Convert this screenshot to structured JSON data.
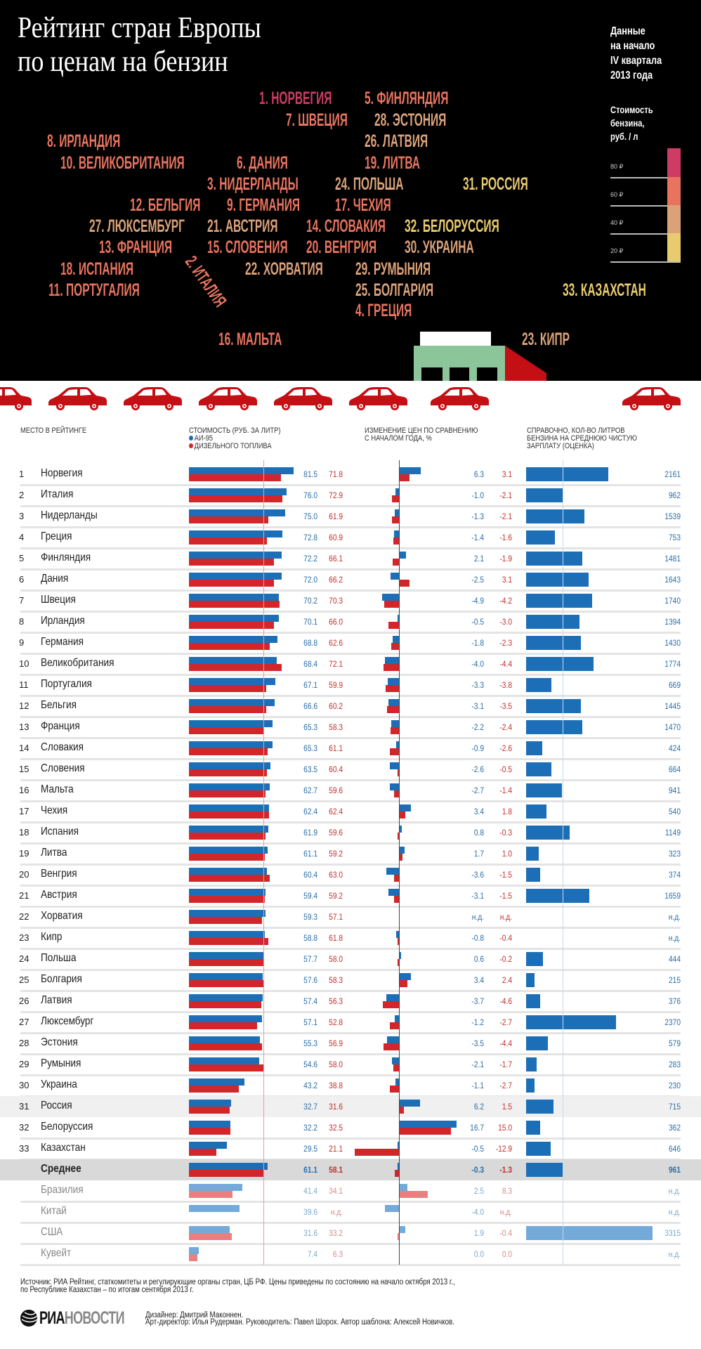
{
  "header": {
    "title_line1": "Рейтинг стран Европы",
    "title_line2": "по ценам на бензин",
    "data_note": [
      "Данные",
      "на начало",
      "IV квартала",
      "2013 года"
    ],
    "legend_title": [
      "Стоимость",
      "бензина,",
      "руб. / л"
    ],
    "legend": [
      {
        "label": "80 ₽",
        "color": "#cc3c64"
      },
      {
        "label": "60 ₽",
        "color": "#e8745f"
      },
      {
        "label": "40 ₽",
        "color": "#dba27a"
      },
      {
        "label": "20 ₽",
        "color": "#e9cb6f"
      }
    ]
  },
  "map_labels": [
    {
      "text": "1. НОРВЕГИЯ",
      "color": "#cc3c64"
    },
    {
      "text": "5. ФИНЛЯНДИЯ",
      "color": "#e8745f"
    },
    {
      "text": "7. ШВЕЦИЯ",
      "color": "#e8745f"
    },
    {
      "text": "28. ЭСТОНИЯ",
      "color": "#dba27a"
    },
    {
      "text": "8. ИРЛАНДИЯ",
      "color": "#e8745f"
    },
    {
      "text": "26. ЛАТВИЯ",
      "color": "#dba27a"
    },
    {
      "text": "10. ВЕЛИКОБРИТАНИЯ",
      "color": "#e8745f"
    },
    {
      "text": "6. ДАНИЯ",
      "color": "#e8745f"
    },
    {
      "text": "19. ЛИТВА",
      "color": "#e8745f"
    },
    {
      "text": "3. НИДЕРЛАНДЫ",
      "color": "#e8745f"
    },
    {
      "text": "24. ПОЛЬША",
      "color": "#dba27a"
    },
    {
      "text": "31. РОССИЯ",
      "color": "#e9cb6f"
    },
    {
      "text": "12. БЕЛЬГИЯ",
      "color": "#e8745f"
    },
    {
      "text": "9. ГЕРМАНИЯ",
      "color": "#e8745f"
    },
    {
      "text": "17. ЧЕХИЯ",
      "color": "#e8745f"
    },
    {
      "text": "27. ЛЮКСЕМБУРГ",
      "color": "#dba27a"
    },
    {
      "text": "21. АВСТРИЯ",
      "color": "#dba27a"
    },
    {
      "text": "14. СЛОВАКИЯ",
      "color": "#e8745f"
    },
    {
      "text": "32. БЕЛОРУССИЯ",
      "color": "#e9cb6f"
    },
    {
      "text": "13. ФРАНЦИЯ",
      "color": "#e8745f"
    },
    {
      "text": "15. СЛОВЕНИЯ",
      "color": "#e8745f"
    },
    {
      "text": "20. ВЕНГРИЯ",
      "color": "#e8745f"
    },
    {
      "text": "30. УКРАИНА",
      "color": "#dba27a"
    },
    {
      "text": "18. ИСПАНИЯ",
      "color": "#e8745f"
    },
    {
      "text": "22. ХОРВАТИЯ",
      "color": "#dba27a"
    },
    {
      "text": "29. РУМЫНИЯ",
      "color": "#dba27a"
    },
    {
      "text": "11. ПОРТУГАЛИЯ",
      "color": "#e8745f"
    },
    {
      "text": "25. БОЛГАРИЯ",
      "color": "#dba27a"
    },
    {
      "text": "4. ГРЕЦИЯ",
      "color": "#e8745f"
    },
    {
      "text": "33. КАЗАХСТАН",
      "color": "#e9cb6f"
    },
    {
      "text": "2. ИТАЛИЯ",
      "color": "#e8745f"
    },
    {
      "text": "16. МАЛЬТА",
      "color": "#e8745f"
    },
    {
      "text": "23. КИПР",
      "color": "#dba27a"
    }
  ],
  "table_header": {
    "rank": "Место в рейтинге",
    "cost": "Стоимость (руб. за литр)",
    "ai95": "АИ-95",
    "diesel": "дизельного топлива",
    "change": [
      "Изменение цен по сравнению",
      "с началом года, %"
    ],
    "liters": [
      "Справочно, кол-во литров",
      "бензина на среднюю чистую",
      "зарплату (оценка)"
    ]
  },
  "colors": {
    "ai95": "#1c6fb6",
    "diesel": "#d2262a",
    "ai95_light": "#74aad9",
    "diesel_light": "#e98080",
    "ai95_text": "#2a6ea8",
    "diesel_text": "#c0302c"
  },
  "chart_data": {
    "type": "bar",
    "grid": false,
    "columns": [
      "Стоимость АИ-95",
      "Стоимость дизельного топлива",
      "Изменение АИ-95, %",
      "Изменение дизеля, %",
      "Литров на зарплату"
    ],
    "rows": [
      {
        "rank": "1",
        "name": "Норвегия",
        "ai95": "81.5",
        "diesel": "71.8",
        "ai95_change": "6.3",
        "diesel_change": "3.1",
        "liters": "2161"
      },
      {
        "rank": "2",
        "name": "Италия",
        "ai95": "76.0",
        "diesel": "72.9",
        "ai95_change": "-1.0",
        "diesel_change": "-2.1",
        "liters": "962"
      },
      {
        "rank": "3",
        "name": "Нидерланды",
        "ai95": "75.0",
        "diesel": "61.9",
        "ai95_change": "-1.3",
        "diesel_change": "-2.1",
        "liters": "1539"
      },
      {
        "rank": "4",
        "name": "Греция",
        "ai95": "72.8",
        "diesel": "60.9",
        "ai95_change": "-1.4",
        "diesel_change": "-1.6",
        "liters": "753"
      },
      {
        "rank": "5",
        "name": "Финляндия",
        "ai95": "72.2",
        "diesel": "66.1",
        "ai95_change": "2.1",
        "diesel_change": "-1.9",
        "liters": "1481"
      },
      {
        "rank": "6",
        "name": "Дания",
        "ai95": "72.0",
        "diesel": "66.2",
        "ai95_change": "-2.5",
        "diesel_change": "3.1",
        "liters": "1643"
      },
      {
        "rank": "7",
        "name": "Швеция",
        "ai95": "70.2",
        "diesel": "70.3",
        "ai95_change": "-4.9",
        "diesel_change": "-4.2",
        "liters": "1740"
      },
      {
        "rank": "8",
        "name": "Ирландия",
        "ai95": "70.1",
        "diesel": "66.0",
        "ai95_change": "-0.5",
        "diesel_change": "-3.0",
        "liters": "1394"
      },
      {
        "rank": "9",
        "name": "Германия",
        "ai95": "68.8",
        "diesel": "62.6",
        "ai95_change": "-1.8",
        "diesel_change": "-2.3",
        "liters": "1430"
      },
      {
        "rank": "10",
        "name": "Великобритания",
        "ai95": "68.4",
        "diesel": "72.1",
        "ai95_change": "-4.0",
        "diesel_change": "-4.4",
        "liters": "1774"
      },
      {
        "rank": "11",
        "name": "Португалия",
        "ai95": "67.1",
        "diesel": "59.9",
        "ai95_change": "-3.3",
        "diesel_change": "-3.8",
        "liters": "669"
      },
      {
        "rank": "12",
        "name": "Бельгия",
        "ai95": "66.6",
        "diesel": "60.2",
        "ai95_change": "-3.1",
        "diesel_change": "-3.5",
        "liters": "1445"
      },
      {
        "rank": "13",
        "name": "Франция",
        "ai95": "65.3",
        "diesel": "58.3",
        "ai95_change": "-2.2",
        "diesel_change": "-2.4",
        "liters": "1470"
      },
      {
        "rank": "14",
        "name": "Словакия",
        "ai95": "65.3",
        "diesel": "61.1",
        "ai95_change": "-0.9",
        "diesel_change": "-2.6",
        "liters": "424"
      },
      {
        "rank": "15",
        "name": "Словения",
        "ai95": "63.5",
        "diesel": "60.4",
        "ai95_change": "-2.6",
        "diesel_change": "-0.5",
        "liters": "664"
      },
      {
        "rank": "16",
        "name": "Мальта",
        "ai95": "62.7",
        "diesel": "59.6",
        "ai95_change": "-2.7",
        "diesel_change": "-1.4",
        "liters": "941"
      },
      {
        "rank": "17",
        "name": "Чехия",
        "ai95": "62.4",
        "diesel": "62.4",
        "ai95_change": "3.4",
        "diesel_change": "1.8",
        "liters": "540"
      },
      {
        "rank": "18",
        "name": "Испания",
        "ai95": "61.9",
        "diesel": "59.6",
        "ai95_change": "0.8",
        "diesel_change": "-0.3",
        "liters": "1149"
      },
      {
        "rank": "19",
        "name": "Литва",
        "ai95": "61.1",
        "diesel": "59.2",
        "ai95_change": "1.7",
        "diesel_change": "1.0",
        "liters": "323"
      },
      {
        "rank": "20",
        "name": "Венгрия",
        "ai95": "60.4",
        "diesel": "63.0",
        "ai95_change": "-3.6",
        "diesel_change": "-1.5",
        "liters": "374"
      },
      {
        "rank": "21",
        "name": "Австрия",
        "ai95": "59.4",
        "diesel": "59.2",
        "ai95_change": "-3.1",
        "diesel_change": "-1.5",
        "liters": "1659"
      },
      {
        "rank": "22",
        "name": "Хорватия",
        "ai95": "59.3",
        "diesel": "57.1",
        "ai95_change": "н.д.",
        "diesel_change": "н.д.",
        "liters": "н.д."
      },
      {
        "rank": "23",
        "name": "Кипр",
        "ai95": "58.8",
        "diesel": "61.8",
        "ai95_change": "-0.8",
        "diesel_change": "-0.4",
        "liters": "н.д."
      },
      {
        "rank": "24",
        "name": "Польша",
        "ai95": "57.7",
        "diesel": "58.0",
        "ai95_change": "0.6",
        "diesel_change": "-0.2",
        "liters": "444"
      },
      {
        "rank": "25",
        "name": "Болгария",
        "ai95": "57.6",
        "diesel": "58.3",
        "ai95_change": "3.4",
        "diesel_change": "2.4",
        "liters": "215"
      },
      {
        "rank": "26",
        "name": "Латвия",
        "ai95": "57.4",
        "diesel": "56.3",
        "ai95_change": "-3.7",
        "diesel_change": "-4.6",
        "liters": "376"
      },
      {
        "rank": "27",
        "name": "Люксембург",
        "ai95": "57.1",
        "diesel": "52.8",
        "ai95_change": "-1.2",
        "diesel_change": "-2.7",
        "liters": "2370"
      },
      {
        "rank": "28",
        "name": "Эстония",
        "ai95": "55.3",
        "diesel": "56.9",
        "ai95_change": "-3.5",
        "diesel_change": "-4.4",
        "liters": "579"
      },
      {
        "rank": "29",
        "name": "Румыния",
        "ai95": "54.6",
        "diesel": "58.0",
        "ai95_change": "-2.1",
        "diesel_change": "-1.7",
        "liters": "283"
      },
      {
        "rank": "30",
        "name": "Украина",
        "ai95": "43.2",
        "diesel": "38.8",
        "ai95_change": "-1.1",
        "diesel_change": "-2.7",
        "liters": "230"
      },
      {
        "rank": "31",
        "name": "Россия",
        "ai95": "32.7",
        "diesel": "31.6",
        "ai95_change": "6.2",
        "diesel_change": "1.5",
        "liters": "715",
        "highlight": true
      },
      {
        "rank": "32",
        "name": "Белоруссия",
        "ai95": "32.2",
        "diesel": "32.5",
        "ai95_change": "16.7",
        "diesel_change": "15.0",
        "liters": "362"
      },
      {
        "rank": "33",
        "name": "Казахстан",
        "ai95": "29.5",
        "diesel": "21.1",
        "ai95_change": "-0.5",
        "diesel_change": "-12.9",
        "liters": "646"
      },
      {
        "rank": "",
        "name": "Среднее",
        "ai95": "61.1",
        "diesel": "58.1",
        "ai95_change": "-0.3",
        "diesel_change": "-1.3",
        "liters": "961",
        "average": true
      },
      {
        "rank": "",
        "name": "Бразилия",
        "ai95": "41.4",
        "diesel": "34.1",
        "ai95_change": "2.5",
        "diesel_change": "8.3",
        "liters": "н.д.",
        "reference": true
      },
      {
        "rank": "",
        "name": "Китай",
        "ai95": "39.6",
        "diesel": "н.д.",
        "ai95_change": "-4.0",
        "diesel_change": "н.д.",
        "liters": "н.д.",
        "reference": true
      },
      {
        "rank": "",
        "name": "США",
        "ai95": "31.6",
        "diesel": "33.2",
        "ai95_change": "1.9",
        "diesel_change": "-0.4",
        "liters": "3315",
        "reference": true
      },
      {
        "rank": "",
        "name": "Кувейт",
        "ai95": "7.4",
        "diesel": "6.3",
        "ai95_change": "0.0",
        "diesel_change": "0.0",
        "liters": "н.д.",
        "reference": true
      }
    ]
  },
  "footer": {
    "source_line1": "Источник: РИА Рейтинг, статкомитеты и регулирующие органы стран, ЦБ РФ. Цены приведены по состоянию на начало октября 2013 г.,",
    "source_line2": "по Республике Казахстан – по итогам сентября 2013 г.",
    "logo": "РИАНОВОСТИ",
    "credits_line1": "Дизайнер: Дмитрий Маконнен.",
    "credits_line2": "Арт-директор: Илья Рудерман. Руководитель: Павел Шорох. Автор шаблона: Алексей Новичков."
  }
}
